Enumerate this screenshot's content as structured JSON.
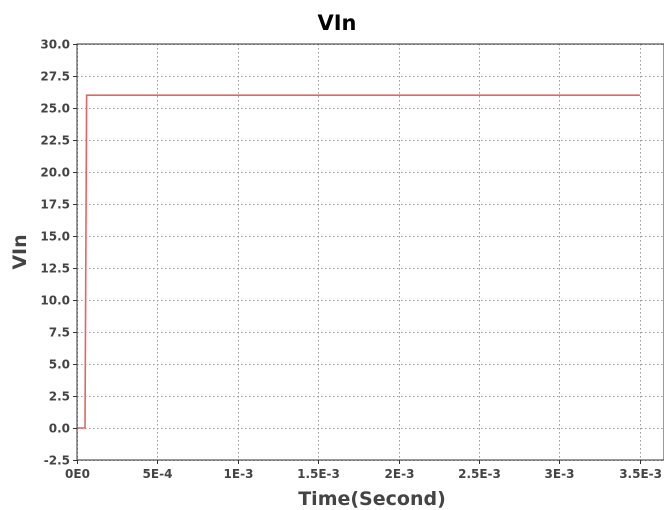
{
  "chart_data": {
    "type": "line",
    "title": "VIn",
    "xlabel": "Time(Second)",
    "ylabel": "VIn",
    "xlim": [
      0,
      0.00365
    ],
    "ylim": [
      -2.5,
      30.0
    ],
    "x_ticks": [
      {
        "value": 0,
        "label": "0E0"
      },
      {
        "value": 0.0005,
        "label": "5E-4"
      },
      {
        "value": 0.001,
        "label": "1E-3"
      },
      {
        "value": 0.0015,
        "label": "1.5E-3"
      },
      {
        "value": 0.002,
        "label": "2E-3"
      },
      {
        "value": 0.0025,
        "label": "2.5E-3"
      },
      {
        "value": 0.003,
        "label": "3E-3"
      },
      {
        "value": 0.0035,
        "label": "3.5E-3"
      }
    ],
    "y_ticks": [
      {
        "value": 30.0,
        "label": "30.0"
      },
      {
        "value": 27.5,
        "label": "27.5"
      },
      {
        "value": 25.0,
        "label": "25.0"
      },
      {
        "value": 22.5,
        "label": "22.5"
      },
      {
        "value": 20.0,
        "label": "20.0"
      },
      {
        "value": 17.5,
        "label": "17.5"
      },
      {
        "value": 15.0,
        "label": "15.0"
      },
      {
        "value": 12.5,
        "label": "12.5"
      },
      {
        "value": 10.0,
        "label": "10.0"
      },
      {
        "value": 7.5,
        "label": "7.5"
      },
      {
        "value": 5.0,
        "label": "5.0"
      },
      {
        "value": 2.5,
        "label": "2.5"
      },
      {
        "value": 0.0,
        "label": "0.0"
      },
      {
        "value": -2.5,
        "label": "-2.5"
      }
    ],
    "grid": true,
    "series": [
      {
        "color": "#e06666",
        "x": [
          0,
          5e-05,
          6e-05,
          0.0035
        ],
        "y": [
          0,
          0,
          26,
          26
        ]
      }
    ]
  }
}
